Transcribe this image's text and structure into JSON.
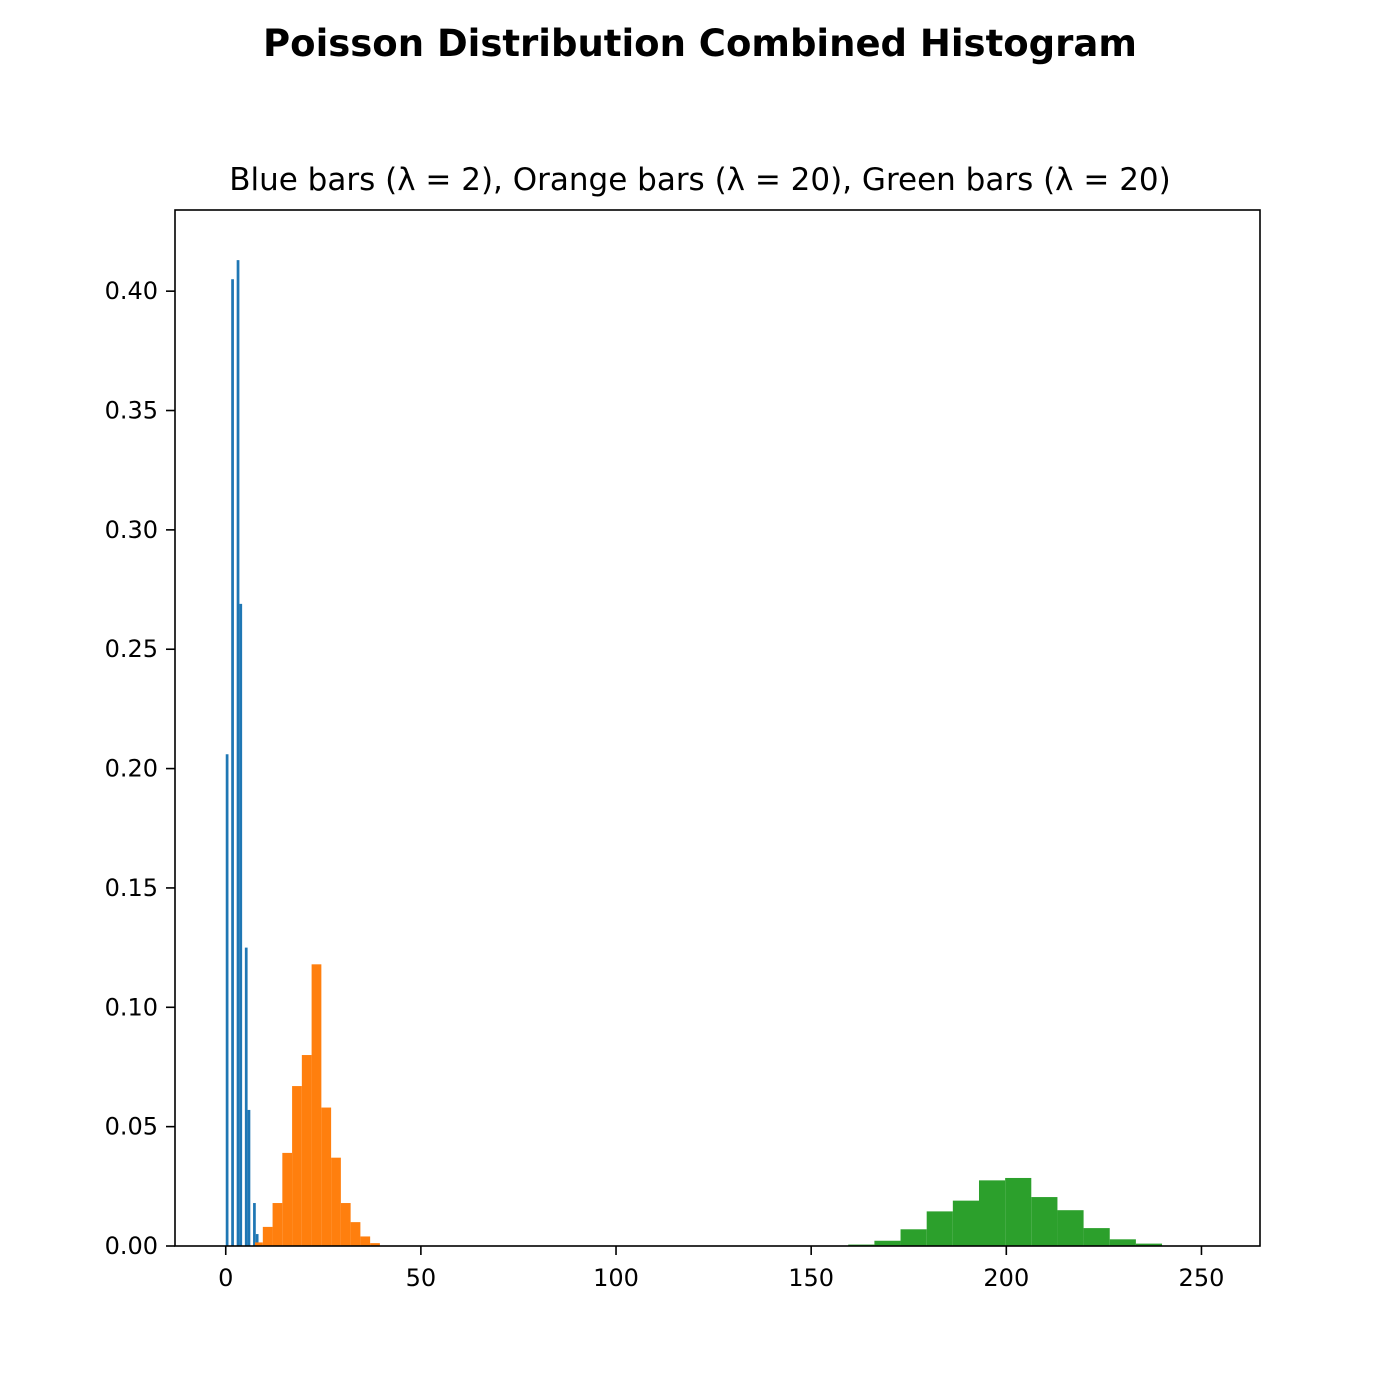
{
  "figure": {
    "title": "Poisson Distribution Combined Histogram"
  },
  "chart_data": {
    "type": "bar",
    "title": "Blue bars (λ = 2), Orange bars (λ = 20), Green bars (λ = 20)",
    "xlabel": "",
    "ylabel": "",
    "xlim": [
      -13,
      265
    ],
    "ylim": [
      0,
      0.434
    ],
    "xticks": [
      0,
      50,
      100,
      150,
      200,
      250
    ],
    "xtick_labels": [
      "0",
      "50",
      "100",
      "150",
      "200",
      "250"
    ],
    "yticks": [
      0.0,
      0.05,
      0.1,
      0.15,
      0.2,
      0.25,
      0.3,
      0.35,
      0.4
    ],
    "ytick_labels": [
      "0.00",
      "0.05",
      "0.10",
      "0.15",
      "0.20",
      "0.25",
      "0.30",
      "0.35",
      "0.40"
    ],
    "grid": false,
    "series": [
      {
        "color": "#1f77b4",
        "bins": [
          {
            "x0": 0.0,
            "x1": 0.7,
            "y": 0.206
          },
          {
            "x0": 0.7,
            "x1": 1.4,
            "y": 0.0
          },
          {
            "x0": 1.4,
            "x1": 2.1,
            "y": 0.405
          },
          {
            "x0": 2.1,
            "x1": 2.8,
            "y": 0.0
          },
          {
            "x0": 2.8,
            "x1": 3.5,
            "y": 0.413
          },
          {
            "x0": 3.5,
            "x1": 4.2,
            "y": 0.269
          },
          {
            "x0": 4.2,
            "x1": 4.9,
            "y": 0.0
          },
          {
            "x0": 4.9,
            "x1": 5.6,
            "y": 0.125
          },
          {
            "x0": 5.6,
            "x1": 6.3,
            "y": 0.057
          },
          {
            "x0": 6.3,
            "x1": 7.0,
            "y": 0.0
          },
          {
            "x0": 7.0,
            "x1": 7.7,
            "y": 0.018
          },
          {
            "x0": 7.7,
            "x1": 8.4,
            "y": 0.005
          }
        ]
      },
      {
        "color": "#ff7f0e",
        "bins": [
          {
            "x0": 7.5,
            "x1": 9.5,
            "y": 0.0015
          },
          {
            "x0": 9.5,
            "x1": 12.0,
            "y": 0.008
          },
          {
            "x0": 12.0,
            "x1": 14.5,
            "y": 0.018
          },
          {
            "x0": 14.5,
            "x1": 17.0,
            "y": 0.039
          },
          {
            "x0": 17.0,
            "x1": 19.5,
            "y": 0.067
          },
          {
            "x0": 19.5,
            "x1": 22.0,
            "y": 0.08
          },
          {
            "x0": 22.0,
            "x1": 24.5,
            "y": 0.118
          },
          {
            "x0": 24.5,
            "x1": 27.0,
            "y": 0.058
          },
          {
            "x0": 27.0,
            "x1": 29.5,
            "y": 0.037
          },
          {
            "x0": 29.5,
            "x1": 32.0,
            "y": 0.018
          },
          {
            "x0": 32.0,
            "x1": 34.5,
            "y": 0.01
          },
          {
            "x0": 34.5,
            "x1": 37.0,
            "y": 0.004
          },
          {
            "x0": 37.0,
            "x1": 39.5,
            "y": 0.0012
          }
        ]
      },
      {
        "color": "#2ca02c",
        "bins": [
          {
            "x0": 159.5,
            "x1": 166.2,
            "y": 0.0006
          },
          {
            "x0": 166.2,
            "x1": 172.9,
            "y": 0.0022
          },
          {
            "x0": 172.9,
            "x1": 179.6,
            "y": 0.007
          },
          {
            "x0": 179.6,
            "x1": 186.3,
            "y": 0.0145
          },
          {
            "x0": 186.3,
            "x1": 193.0,
            "y": 0.019
          },
          {
            "x0": 193.0,
            "x1": 199.7,
            "y": 0.0275
          },
          {
            "x0": 199.7,
            "x1": 206.4,
            "y": 0.0285
          },
          {
            "x0": 206.4,
            "x1": 213.1,
            "y": 0.0205
          },
          {
            "x0": 213.1,
            "x1": 219.8,
            "y": 0.015
          },
          {
            "x0": 219.8,
            "x1": 226.5,
            "y": 0.0075
          },
          {
            "x0": 226.5,
            "x1": 233.2,
            "y": 0.0028
          },
          {
            "x0": 233.2,
            "x1": 239.9,
            "y": 0.001
          }
        ]
      }
    ]
  }
}
